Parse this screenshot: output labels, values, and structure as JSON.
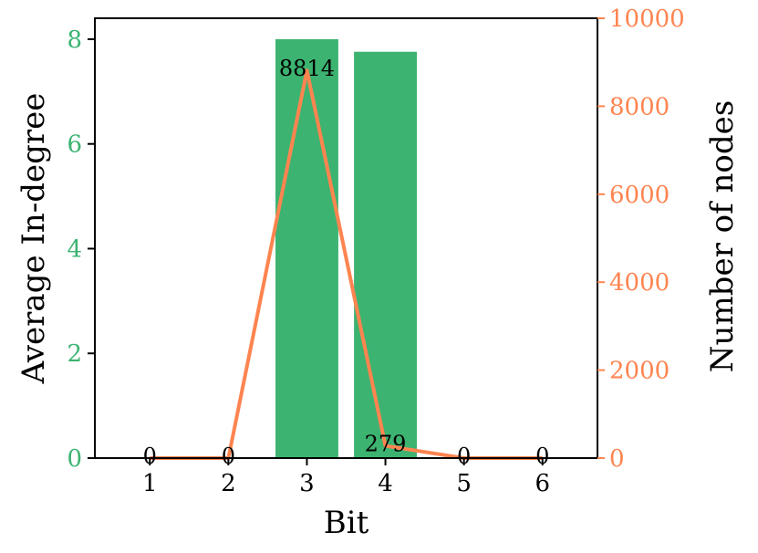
{
  "chart_data": {
    "type": "bar+line",
    "x": [
      1,
      2,
      3,
      4,
      5,
      6
    ],
    "xlabel": "Bit",
    "xlim": [
      0.3,
      6.7
    ],
    "series": [
      {
        "axis": "left",
        "chart": "bar",
        "color": "#3cb371",
        "values": [
          0,
          0,
          8.0,
          7.76,
          0,
          0
        ]
      },
      {
        "axis": "right",
        "chart": "line",
        "color": "#ff8450",
        "values": [
          0,
          0,
          8814,
          279,
          0,
          0
        ],
        "data_labels": [
          "0",
          "0",
          "8814",
          "279",
          "0",
          "0"
        ]
      }
    ],
    "y_left": {
      "label": "Average In-degree",
      "ylim": [
        0,
        8.4
      ],
      "ticks": [
        0,
        2,
        4,
        6,
        8
      ],
      "tick_labels": [
        "0",
        "2",
        "4",
        "6",
        "8"
      ],
      "color": "#3cb371"
    },
    "y_right": {
      "label": "Number of nodes",
      "ylim": [
        0,
        10000
      ],
      "ticks": [
        0,
        2000,
        4000,
        6000,
        8000,
        10000
      ],
      "tick_labels": [
        "0",
        "2000",
        "4000",
        "6000",
        "8000",
        "10000"
      ],
      "color": "#ff8450"
    },
    "x_tick_labels": [
      "1",
      "2",
      "3",
      "4",
      "5",
      "6"
    ],
    "grid": false,
    "legend": "none"
  }
}
